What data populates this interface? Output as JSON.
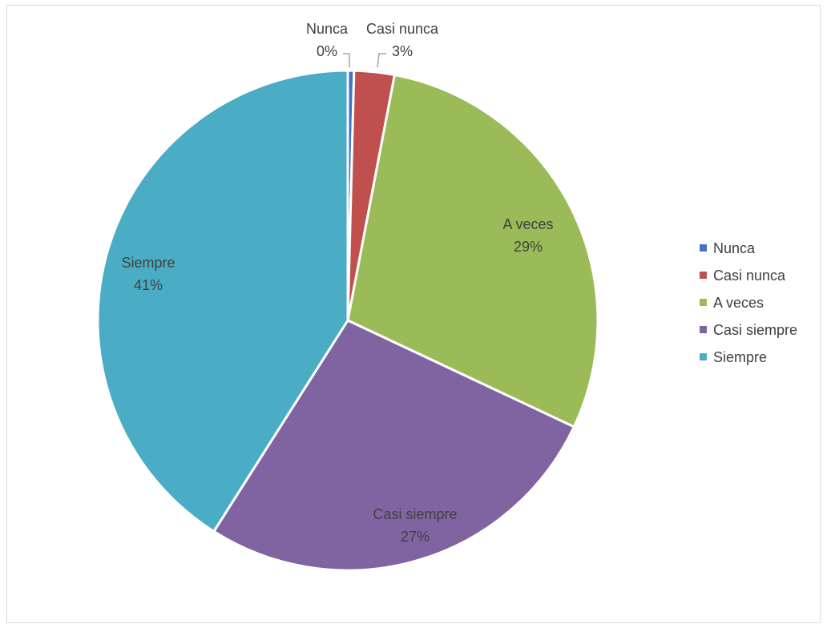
{
  "chart_data": {
    "type": "pie",
    "title": "",
    "legend_position": "right",
    "slices": [
      {
        "label": "Nunca",
        "value": 0.4,
        "display": "0%",
        "color": "#4472C4"
      },
      {
        "label": "Casi nunca",
        "value": 2.6,
        "display": "3%",
        "color": "#C0504D"
      },
      {
        "label": "A veces",
        "value": 29,
        "display": "29%",
        "color": "#9BBB59"
      },
      {
        "label": "Casi siempre",
        "value": 27,
        "display": "27%",
        "color": "#8064A2"
      },
      {
        "label": "Siempre",
        "value": 41,
        "display": "41%",
        "color": "#4BACC6"
      }
    ]
  }
}
